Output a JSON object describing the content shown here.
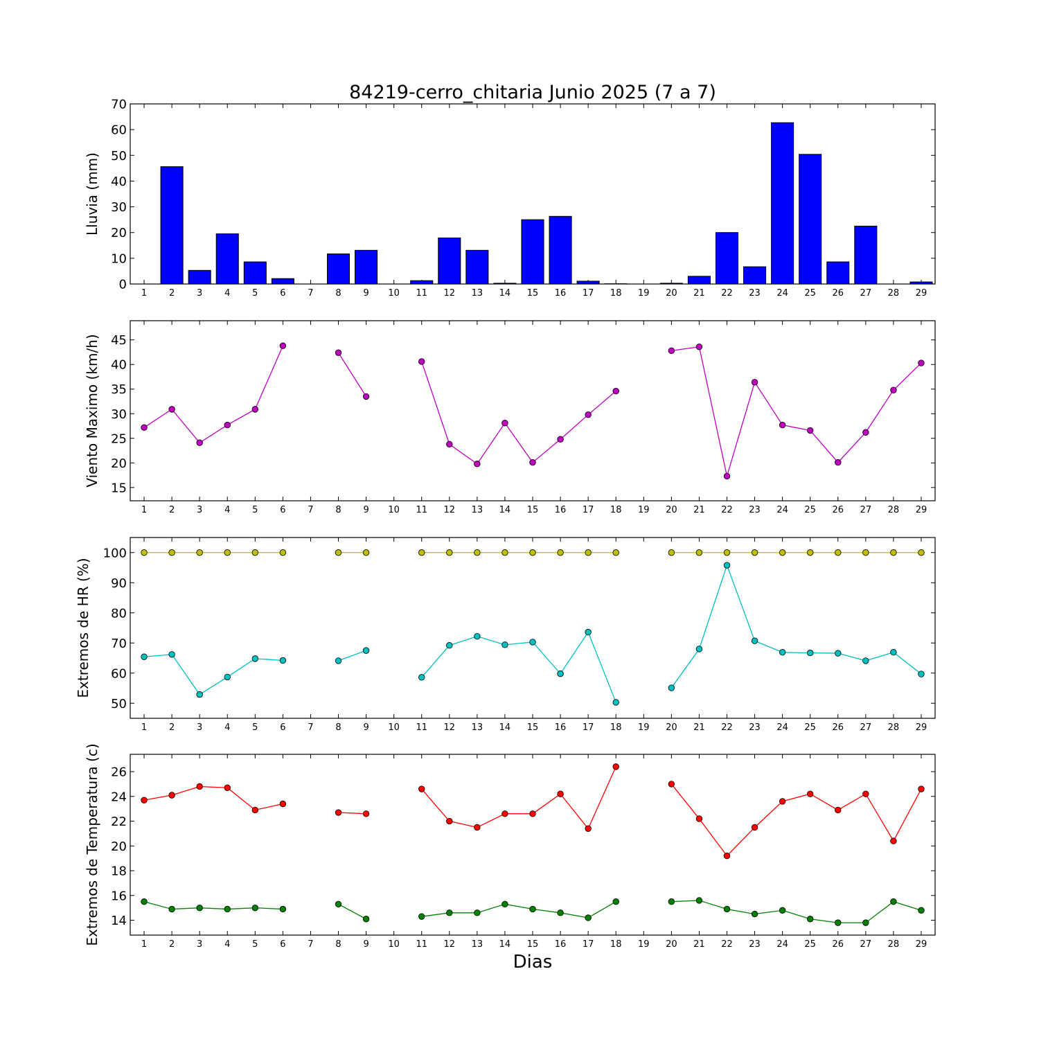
{
  "title": "84219-cerro_chitaria Junio 2025  (7 a 7)",
  "xlabel": "Dias",
  "colors": {
    "rain": "#0000ff",
    "wind": "#bf00bf",
    "hr_max": "#bfbf00",
    "hr_min": "#00bfbf",
    "temp_max": "#ff0000",
    "temp_min": "#008000"
  },
  "chart_data": [
    {
      "type": "bar",
      "ylabel": "Lluvia (mm)",
      "ylim": [
        0,
        70
      ],
      "yticks": [
        0,
        10,
        20,
        30,
        40,
        50,
        60,
        70
      ],
      "categories": [
        "1",
        "2",
        "3",
        "4",
        "5",
        "6",
        "7",
        "8",
        "9",
        "10",
        "11",
        "12",
        "13",
        "14",
        "15",
        "16",
        "17",
        "18",
        "19",
        "20",
        "21",
        "22",
        "23",
        "24",
        "25",
        "26",
        "27",
        "28",
        "29"
      ],
      "series": [
        {
          "values": [
            0,
            45.6,
            5.3,
            19.5,
            8.6,
            2.1,
            0,
            11.7,
            13.1,
            0,
            1.3,
            17.9,
            13.1,
            0.3,
            25.0,
            26.3,
            1.1,
            0.1,
            0,
            0.3,
            3.0,
            20.0,
            6.7,
            62.7,
            50.4,
            8.6,
            22.5,
            0,
            0.8
          ]
        }
      ]
    },
    {
      "type": "line",
      "ylabel": "Viento Maximo (km/h)",
      "ylim": [
        12.3,
        48.9
      ],
      "yticks": [
        15,
        20,
        25,
        30,
        35,
        40,
        45
      ],
      "x": [
        1,
        2,
        3,
        4,
        5,
        6,
        7,
        8,
        9,
        10,
        11,
        12,
        13,
        14,
        15,
        16,
        17,
        18,
        19,
        20,
        21,
        22,
        23,
        24,
        25,
        26,
        27,
        28,
        29
      ],
      "series": [
        {
          "values": [
            27.2,
            30.9,
            24.1,
            27.7,
            30.9,
            43.8,
            null,
            42.4,
            33.5,
            null,
            40.6,
            23.8,
            19.8,
            28.1,
            20.1,
            24.8,
            29.8,
            34.6,
            null,
            42.8,
            43.6,
            17.3,
            36.4,
            27.7,
            26.6,
            20.1,
            26.2,
            34.8,
            40.3
          ]
        }
      ]
    },
    {
      "type": "line",
      "ylabel": "Extremos de HR (%)",
      "ylim": [
        45,
        105
      ],
      "yticks": [
        50,
        60,
        70,
        80,
        90,
        100
      ],
      "x": [
        1,
        2,
        3,
        4,
        5,
        6,
        7,
        8,
        9,
        10,
        11,
        12,
        13,
        14,
        15,
        16,
        17,
        18,
        19,
        20,
        21,
        22,
        23,
        24,
        25,
        26,
        27,
        28,
        29
      ],
      "series": [
        {
          "values": [
            100,
            100,
            100,
            100,
            100,
            100,
            null,
            100,
            100,
            null,
            100,
            100,
            100,
            100,
            100,
            100,
            100,
            100,
            null,
            100,
            100,
            100,
            100,
            100,
            100,
            100,
            100,
            100,
            100
          ]
        },
        {
          "values": [
            65.4,
            66.2,
            52.9,
            58.7,
            64.8,
            64.2,
            null,
            64.1,
            67.5,
            null,
            58.6,
            69.2,
            72.2,
            69.4,
            70.3,
            59.8,
            73.6,
            50.3,
            null,
            55.1,
            68.0,
            95.8,
            70.7,
            66.9,
            66.7,
            66.6,
            64.1,
            66.9,
            59.7
          ]
        }
      ]
    },
    {
      "type": "line",
      "ylabel": "Extremos de Temperatura (c)",
      "ylim": [
        12.8,
        27.4
      ],
      "yticks": [
        14,
        16,
        18,
        20,
        22,
        24,
        26
      ],
      "x": [
        1,
        2,
        3,
        4,
        5,
        6,
        7,
        8,
        9,
        10,
        11,
        12,
        13,
        14,
        15,
        16,
        17,
        18,
        19,
        20,
        21,
        22,
        23,
        24,
        25,
        26,
        27,
        28,
        29
      ],
      "series": [
        {
          "values": [
            23.7,
            24.1,
            24.8,
            24.7,
            22.9,
            23.4,
            null,
            22.7,
            22.6,
            null,
            24.6,
            22.0,
            21.5,
            22.6,
            22.6,
            24.2,
            21.4,
            26.4,
            null,
            25.0,
            22.2,
            19.2,
            21.5,
            23.6,
            24.2,
            22.9,
            24.2,
            20.4,
            24.6
          ]
        },
        {
          "values": [
            15.5,
            14.9,
            15.0,
            14.9,
            15.0,
            14.9,
            null,
            15.3,
            14.1,
            null,
            14.3,
            14.6,
            14.6,
            15.3,
            14.9,
            14.6,
            14.2,
            15.5,
            null,
            15.5,
            15.6,
            14.9,
            14.5,
            14.8,
            14.1,
            13.8,
            13.8,
            15.5,
            14.8
          ]
        }
      ]
    }
  ]
}
